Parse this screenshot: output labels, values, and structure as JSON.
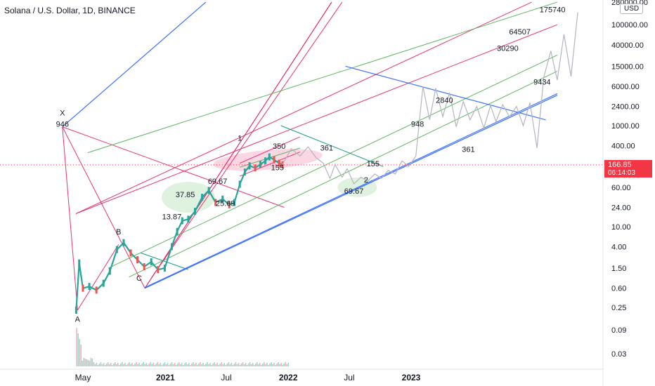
{
  "header": {
    "title": "Solana / U.S. Dollar, 1D, BINANCE",
    "currency": "USD"
  },
  "price_tag": {
    "value": "166.85",
    "countdown": "06:14:03",
    "color": "#f23645"
  },
  "colors": {
    "candle_up": "#26a69a",
    "candle_down": "#ef5350",
    "pink": "#e91e63",
    "green": "#4caf50",
    "blue": "#2962ff",
    "teal": "#00897b",
    "projection": "#b2b5be"
  },
  "chart_data": {
    "type": "line",
    "title": "Solana / U.S. Dollar, 1D, BINANCE",
    "y_scale": "log",
    "y_ticks": [
      "280000.00",
      "100000.00",
      "40000.00",
      "15000.00",
      "6000.00",
      "2400.00",
      "1000.00",
      "400.00",
      "166.85",
      "60.00",
      "24.00",
      "10.00",
      "4.00",
      "1.50",
      "0.60",
      "0.25",
      "0.09",
      "0.03"
    ],
    "x_ticks": [
      "May",
      "2021",
      "Jul",
      "2022",
      "Jul",
      "2023"
    ],
    "price_series": {
      "name": "SOL/USD",
      "x": [
        "2020-04-11",
        "2020-04-20",
        "2020-05-01",
        "2020-05-20",
        "2020-06-10",
        "2020-07-01",
        "2020-07-20",
        "2020-08-10",
        "2020-08-30",
        "2020-09-20",
        "2020-10-10",
        "2020-10-30",
        "2020-11-20",
        "2020-12-10",
        "2020-12-30",
        "2021-01-20",
        "2021-02-05",
        "2021-02-20",
        "2021-03-10",
        "2021-03-30",
        "2021-04-20",
        "2021-05-10",
        "2021-05-30",
        "2021-06-20",
        "2021-07-10",
        "2021-07-25",
        "2021-08-10",
        "2021-08-25",
        "2021-09-08",
        "2021-09-25",
        "2021-10-10",
        "2021-10-25",
        "2021-11-06",
        "2021-11-20",
        "2021-12-05",
        "2021-12-15"
      ],
      "y": [
        0.22,
        1.9,
        0.6,
        0.65,
        0.55,
        0.75,
        1.3,
        3.5,
        4.8,
        3.0,
        2.2,
        1.6,
        2.0,
        1.4,
        1.5,
        4.0,
        8,
        13,
        14,
        20,
        38,
        52,
        30,
        35,
        27,
        30,
        69,
        120,
        160,
        145,
        170,
        200,
        240,
        210,
        180,
        166.85
      ]
    },
    "projection_path": {
      "x": [
        "2021-12-15",
        "2022-01-10",
        "2022-02-05",
        "2022-03-01",
        "2022-03-25",
        "2022-04-15",
        "2022-05-05",
        "2022-05-20",
        "2022-06-10",
        "2022-06-25",
        "2022-07-15",
        "2022-08-05",
        "2022-08-25",
        "2022-09-15",
        "2022-10-05",
        "2022-10-25",
        "2022-11-15",
        "2022-12-05",
        "2022-12-25",
        "2023-01-15",
        "2023-02-05",
        "2023-02-25",
        "2023-03-15",
        "2023-04-05",
        "2023-04-25",
        "2023-05-15",
        "2023-06-05",
        "2023-06-25",
        "2023-07-15",
        "2023-08-05",
        "2023-08-25",
        "2023-09-10",
        "2023-09-30",
        "2023-10-20",
        "2023-11-10",
        "2023-11-30",
        "2023-12-20",
        "2024-01-10",
        "2024-01-30",
        "2024-02-20",
        "2024-03-10",
        "2024-03-30",
        "2024-04-20",
        "2024-05-10"
      ],
      "y": [
        170,
        350,
        250,
        380,
        230,
        180,
        90,
        170,
        95,
        140,
        70,
        95,
        80,
        110,
        90,
        130,
        110,
        200,
        155,
        250,
        6000,
        1300,
        5500,
        1500,
        4500,
        950,
        3000,
        1300,
        2400,
        900,
        2500,
        1200,
        2600,
        1500,
        2400,
        1000,
        2840,
        361,
        9000,
        30290,
        8000,
        64507,
        9434,
        175740
      ]
    },
    "price_labels": [
      {
        "text": "946",
        "x": "2020-03-01",
        "y": 946
      },
      {
        "text": "13.87",
        "x": "2021-01-20",
        "y": 13.87
      },
      {
        "text": "37.85",
        "x": "2021-03-01",
        "y": 37.85
      },
      {
        "text": "69.67",
        "x": "2021-06-05",
        "y": 69.67
      },
      {
        "text": "25.69",
        "x": "2021-06-28",
        "y": 25.69
      },
      {
        "text": "155",
        "x": "2021-11-30",
        "y": 130
      },
      {
        "text": "350",
        "x": "2021-12-05",
        "y": 350
      },
      {
        "text": "361",
        "x": "2022-04-25",
        "y": 320
      },
      {
        "text": "155",
        "x": "2022-09-10",
        "y": 155
      },
      {
        "text": "69.67",
        "x": "2022-07-15",
        "y": 45
      },
      {
        "text": "948",
        "x": "2023-01-20",
        "y": 948
      },
      {
        "text": "2840",
        "x": "2023-04-10",
        "y": 2840
      },
      {
        "text": "361",
        "x": "2023-06-20",
        "y": 300
      },
      {
        "text": "30290",
        "x": "2023-10-15",
        "y": 30290
      },
      {
        "text": "64507",
        "x": "2023-11-20",
        "y": 64507
      },
      {
        "text": "9434",
        "x": "2024-01-25",
        "y": 6500
      },
      {
        "text": "175740",
        "x": "2024-02-25",
        "y": 175740
      }
    ],
    "wave_labels": [
      {
        "text": "X",
        "x": "2020-03-01",
        "y": 1600
      },
      {
        "text": "A",
        "x": "2020-04-15",
        "y": 0.13
      },
      {
        "text": "B",
        "x": "2020-08-15",
        "y": 7
      },
      {
        "text": "C",
        "x": "2020-10-15",
        "y": 0.85
      },
      {
        "text": "1",
        "x": "2021-08-10",
        "y": 500
      },
      {
        "text": "2",
        "x": "2022-08-20",
        "y": 75
      }
    ],
    "trend_lines": [
      {
        "color": "pink",
        "x": [
          "2020-03-01",
          "2020-04-15"
        ],
        "y": [
          946,
          0.22
        ]
      },
      {
        "color": "pink",
        "x": [
          "2020-03-01",
          "2020-11-01"
        ],
        "y": [
          946,
          0.6
        ]
      },
      {
        "color": "pink",
        "x": [
          "2020-04-15",
          "2020-08-15"
        ],
        "y": [
          0.22,
          4.4
        ]
      },
      {
        "color": "pink",
        "x": [
          "2020-11-01",
          "2022-05-10"
        ],
        "y": [
          0.6,
          280000
        ]
      },
      {
        "color": "pink",
        "x": [
          "2020-11-01",
          "2022-05-10"
        ],
        "y": [
          0.6,
          280000
        ]
      },
      {
        "color": "pink",
        "x": [
          "2020-11-20",
          "2022-06-10"
        ],
        "y": [
          0.95,
          280000
        ]
      },
      {
        "color": "pink",
        "x": [
          "2020-04-10",
          "2023-12-25"
        ],
        "y": [
          18,
          280000
        ]
      },
      {
        "color": "pink",
        "x": [
          "2020-03-01",
          "2021-12-20"
        ],
        "y": [
          946,
          24
        ]
      },
      {
        "color": "pink",
        "x": [
          "2021-08-10",
          "2022-02-05"
        ],
        "y": [
          180,
          600
        ]
      },
      {
        "color": "pink",
        "x": [
          "2021-08-10",
          "2022-02-05"
        ],
        "y": [
          100,
          300
        ]
      },
      {
        "color": "pink",
        "x": [
          "2020-04-10",
          "2024-03-10"
        ],
        "y": [
          18,
          100000
        ]
      },
      {
        "color": "green",
        "x": [
          "2020-05-15",
          "2024-03-10"
        ],
        "y": [
          290,
          280000
        ]
      },
      {
        "color": "green",
        "x": [
          "2020-07-15",
          "2024-03-10"
        ],
        "y": [
          1.5,
          25000
        ]
      },
      {
        "color": "green",
        "x": [
          "2020-09-15",
          "2024-03-10"
        ],
        "y": [
          1.0,
          12000
        ]
      },
      {
        "color": "green",
        "x": [
          "2021-08-10",
          "2022-02-05"
        ],
        "y": [
          150,
          360
        ]
      },
      {
        "color": "teal",
        "x": [
          "2020-10-20",
          "2021-03-10"
        ],
        "y": [
          3.0,
          1.4
        ]
      },
      {
        "color": "teal",
        "x": [
          "2021-12-10",
          "2022-10-10"
        ],
        "y": [
          1000,
          155
        ]
      },
      {
        "color": "blue",
        "x": [
          "2020-03-01",
          "2021-05-01"
        ],
        "y": [
          946,
          280000
        ]
      },
      {
        "color": "blue",
        "x": [
          "2020-11-01",
          "2024-03-10"
        ],
        "y": [
          0.6,
          4000
        ]
      },
      {
        "color": "blue",
        "x": [
          "2020-11-01",
          "2024-03-10"
        ],
        "y": [
          0.62,
          4300
        ]
      },
      {
        "color": "blue",
        "x": [
          "2022-06-20",
          "2024-02-05"
        ],
        "y": [
          15000,
          1300
        ]
      }
    ]
  }
}
